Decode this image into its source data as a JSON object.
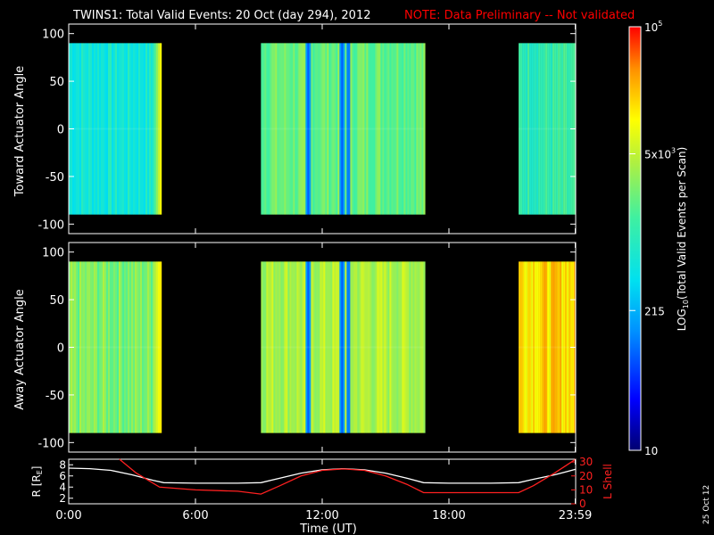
{
  "title": {
    "main": "TWINS1: Total Valid Events: 20 Oct (day 294), 2012",
    "note": "NOTE: Data Preliminary -- Not validated"
  },
  "colors": {
    "background": "#000000",
    "note": "#ff0000",
    "axes": "#ffffff",
    "r_line": "#ffffff",
    "lshell_line": "#ff2020"
  },
  "stamp": "25 Oct 12",
  "chart_data": [
    {
      "type": "heatmap",
      "name": "toward-panel",
      "ylabel": "Toward Actuator Angle",
      "ylim": [
        -110,
        110
      ],
      "yticks": [
        100,
        50,
        0,
        -50,
        -100
      ],
      "xlim": [
        0,
        24
      ],
      "angle_range": [
        -90,
        90
      ],
      "segments": [
        {
          "start": 0.0,
          "end": 4.35,
          "level": 0.45,
          "ramp_to": 0.8,
          "ramp_start": 3.9
        },
        {
          "start": 9.1,
          "end": 16.8,
          "level": 0.6,
          "dark_bands": [
            11.3,
            12.9,
            13.2
          ]
        },
        {
          "start": 21.3,
          "end": 24.0,
          "level": 0.52
        }
      ]
    },
    {
      "type": "heatmap",
      "name": "away-panel",
      "ylabel": "Away Actuator Angle",
      "ylim": [
        -110,
        110
      ],
      "yticks": [
        100,
        50,
        0,
        -50,
        -100
      ],
      "xlim": [
        0,
        24
      ],
      "angle_range": [
        -90,
        90
      ],
      "segments": [
        {
          "start": 0.0,
          "end": 4.35,
          "level": 0.62,
          "ramp_to": 0.82,
          "ramp_start": 3.9
        },
        {
          "start": 9.1,
          "end": 16.8,
          "level": 0.68,
          "dark_bands": [
            11.3,
            12.9,
            13.2
          ]
        },
        {
          "start": 21.3,
          "end": 24.0,
          "level": 0.82
        }
      ]
    },
    {
      "type": "line",
      "name": "orbit-panel",
      "ylabel": "R [R_E]",
      "ylabel_right": "L Shell",
      "ylim": [
        1,
        9
      ],
      "yticks": [
        2,
        4,
        6,
        8
      ],
      "ylim_right": [
        0,
        32
      ],
      "yticks_right": [
        0,
        10,
        20,
        30
      ],
      "xlabel": "Time (UT)",
      "xlim": [
        0,
        24
      ],
      "xticks": [
        {
          "value": 0,
          "label": "0:00"
        },
        {
          "value": 6,
          "label": "6:00"
        },
        {
          "value": 12,
          "label": "12:00"
        },
        {
          "value": 18,
          "label": "18:00"
        },
        {
          "value": 23.98,
          "label": "23:59"
        }
      ],
      "series": [
        {
          "name": "R",
          "axis": "left",
          "x": [
            0,
            1,
            2,
            3,
            4,
            4.5,
            6,
            8,
            9.1,
            10,
            11,
            12,
            13,
            14,
            15,
            16,
            16.8,
            18,
            20,
            21.3,
            22,
            23,
            24
          ],
          "values": [
            7.4,
            7.3,
            7.0,
            6.2,
            5.2,
            4.8,
            4.7,
            4.7,
            4.8,
            5.6,
            6.5,
            7.1,
            7.3,
            7.1,
            6.5,
            5.6,
            4.8,
            4.7,
            4.7,
            4.8,
            5.4,
            6.2,
            7.2
          ]
        },
        {
          "name": "L Shell",
          "axis": "right",
          "x": [
            2.4,
            3.2,
            4.3,
            6,
            8,
            9.1,
            10,
            11,
            12,
            13,
            14,
            15,
            16,
            16.8,
            18,
            20,
            21.3,
            22,
            23,
            24
          ],
          "values": [
            32,
            22,
            12,
            10,
            9,
            7,
            13,
            20,
            24,
            25,
            24,
            20,
            14,
            8,
            8,
            8,
            8,
            13,
            22,
            32
          ]
        }
      ]
    }
  ],
  "colorbar": {
    "label_prefix": "LOG",
    "label_sub": "10",
    "label_rest": "(Total Valid Events per Scan)",
    "ticks": [
      {
        "frac": 1.0,
        "base": "10",
        "sup": "5"
      },
      {
        "frac": 0.7,
        "base": "5x10",
        "sup": "3"
      },
      {
        "frac": 0.33,
        "base": "215",
        "sup": ""
      },
      {
        "frac": 0.0,
        "base": "10",
        "sup": ""
      }
    ]
  }
}
